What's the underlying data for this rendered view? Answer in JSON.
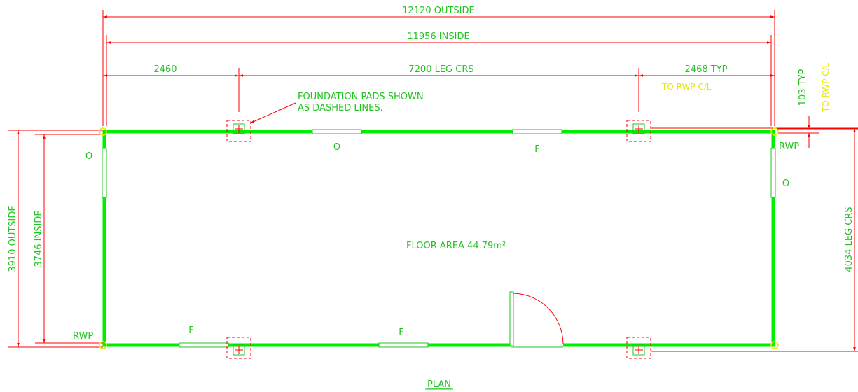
{
  "colors": {
    "wall": "#00ee00",
    "dimension_line": "#ff0000",
    "text": "#22c322",
    "note": "#e8e800",
    "pad": "#ff0000"
  },
  "dimensions": {
    "outside_length": "12120 OUTSIDE",
    "inside_length": "11956 INSIDE",
    "left_seg": "2460",
    "leg_crs": "7200 LEG CRS",
    "right_seg": "2468 TYP",
    "to_rwp": "TO RWP C/L",
    "rwp_offset": "103 TYP",
    "rwp_offset_note": "TO RWP C/L",
    "outside_width": "3910 OUTSIDE",
    "inside_width": "3746 INSIDE",
    "leg_crs_width": "4034 LEG CRS"
  },
  "notes": {
    "foundation_line1": "FOUNDATION PADS SHOWN",
    "foundation_line2": "AS DASHED LINES."
  },
  "labels": {
    "window_top_left": "O",
    "window_top_right": "F",
    "window_left": "O",
    "window_right": "O",
    "window_bottom_left": "F",
    "window_bottom_mid": "F",
    "rwp_top_right": "RWP",
    "rwp_bottom_left": "RWP",
    "floor_area": "FLOOR AREA 44.79m²",
    "plan_title": "PLAN"
  }
}
